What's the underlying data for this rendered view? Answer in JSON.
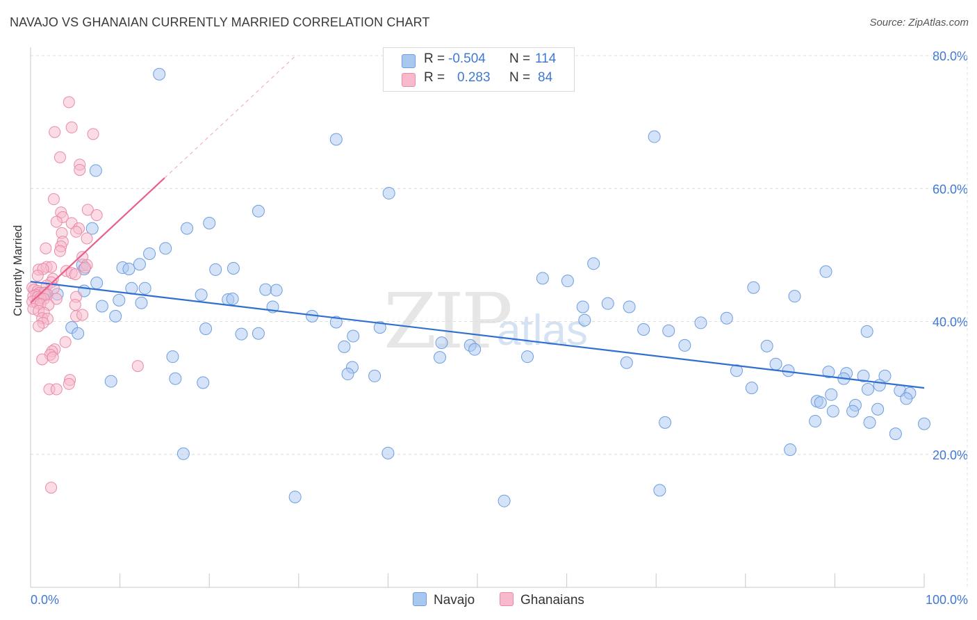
{
  "header": {
    "title": "NAVAJO VS GHANAIAN CURRENTLY MARRIED CORRELATION CHART",
    "source": "Source: ZipAtlas.com"
  },
  "watermark": {
    "zip": "ZIP",
    "atlas": "atlas"
  },
  "legend": {
    "navajo": {
      "r_label": "R =",
      "r_value": "-0.504",
      "n_label": "N =",
      "n_value": "114"
    },
    "ghanaians": {
      "r_label": "R =",
      "r_value": "0.283",
      "n_label": "N =",
      "n_value": "84"
    }
  },
  "bottom_legend": {
    "navajo": "Navajo",
    "ghanaians": "Ghanaians"
  },
  "colors": {
    "navajo_fill": "#a9c8f0",
    "navajo_stroke": "#6d9de0",
    "navajo_line": "#2f6fd0",
    "ghanaian_fill": "#f7b9cb",
    "ghanaian_stroke": "#e98aa8",
    "ghanaian_line": "#e8608a",
    "grid": "#dcdcdc",
    "tick_label": "#3f78d4"
  },
  "chart_data": {
    "type": "scatter",
    "title": "NAVAJO VS GHANAIAN CURRENTLY MARRIED CORRELATION CHART",
    "xlabel": "",
    "ylabel": "Currently Married",
    "xlim": [
      0,
      100
    ],
    "ylim": [
      0,
      80
    ],
    "x_tick_labels": [
      "0.0%",
      "100.0%"
    ],
    "y_ticks": [
      20,
      40,
      60,
      80
    ],
    "y_tick_labels": [
      "20.0%",
      "40.0%",
      "60.0%",
      "80.0%"
    ],
    "grid": true,
    "legend_position": "top-center",
    "series": [
      {
        "name": "Navajo",
        "r": -0.504,
        "n": 114,
        "trend": {
          "x": [
            0,
            100
          ],
          "y": [
            46.0,
            30.0
          ]
        },
        "points": [
          [
            14.4,
            77.2
          ],
          [
            34.2,
            67.4
          ],
          [
            69.8,
            67.8
          ],
          [
            7.3,
            62.7
          ],
          [
            40.1,
            59.3
          ],
          [
            25.5,
            56.6
          ],
          [
            6.9,
            54.0
          ],
          [
            17.5,
            54.0
          ],
          [
            20.0,
            54.8
          ],
          [
            15.1,
            51.0
          ],
          [
            13.3,
            50.2
          ],
          [
            5.8,
            48.5
          ],
          [
            6.0,
            47.9
          ],
          [
            10.3,
            48.1
          ],
          [
            11.0,
            47.9
          ],
          [
            12.2,
            48.6
          ],
          [
            20.7,
            47.8
          ],
          [
            22.7,
            48.0
          ],
          [
            63.0,
            48.7
          ],
          [
            89.0,
            47.5
          ],
          [
            7.4,
            45.8
          ],
          [
            11.3,
            45.0
          ],
          [
            12.8,
            45.0
          ],
          [
            26.3,
            44.8
          ],
          [
            27.5,
            44.7
          ],
          [
            57.3,
            46.5
          ],
          [
            60.1,
            46.1
          ],
          [
            80.9,
            45.1
          ],
          [
            6.0,
            44.6
          ],
          [
            1.7,
            44.3
          ],
          [
            1.6,
            44.0
          ],
          [
            3.0,
            44.1
          ],
          [
            19.1,
            44.0
          ],
          [
            22.1,
            43.3
          ],
          [
            22.6,
            43.4
          ],
          [
            8.0,
            42.3
          ],
          [
            9.9,
            43.2
          ],
          [
            12.4,
            42.8
          ],
          [
            27.1,
            42.2
          ],
          [
            61.8,
            42.2
          ],
          [
            64.6,
            42.7
          ],
          [
            67.0,
            42.2
          ],
          [
            85.5,
            43.8
          ],
          [
            9.5,
            40.8
          ],
          [
            31.5,
            40.8
          ],
          [
            62.0,
            40.2
          ],
          [
            34.2,
            39.9
          ],
          [
            4.6,
            39.1
          ],
          [
            19.6,
            38.9
          ],
          [
            39.1,
            39.1
          ],
          [
            68.6,
            38.8
          ],
          [
            71.4,
            38.6
          ],
          [
            75.0,
            39.8
          ],
          [
            77.9,
            40.5
          ],
          [
            93.6,
            38.5
          ],
          [
            5.3,
            38.2
          ],
          [
            23.6,
            38.1
          ],
          [
            25.5,
            38.2
          ],
          [
            36.1,
            37.8
          ],
          [
            35.1,
            36.2
          ],
          [
            46.0,
            36.8
          ],
          [
            49.2,
            36.4
          ],
          [
            49.7,
            35.8
          ],
          [
            73.2,
            36.4
          ],
          [
            82.4,
            36.3
          ],
          [
            15.9,
            34.7
          ],
          [
            45.8,
            34.6
          ],
          [
            55.6,
            34.7
          ],
          [
            66.7,
            33.8
          ],
          [
            36.0,
            33.1
          ],
          [
            83.4,
            33.6
          ],
          [
            84.8,
            32.6
          ],
          [
            35.5,
            32.1
          ],
          [
            38.5,
            31.8
          ],
          [
            79.0,
            32.6
          ],
          [
            89.3,
            32.4
          ],
          [
            91.3,
            32.2
          ],
          [
            93.2,
            31.8
          ],
          [
            95.6,
            31.8
          ],
          [
            16.2,
            31.4
          ],
          [
            9.0,
            31.0
          ],
          [
            19.3,
            30.8
          ],
          [
            93.7,
            29.8
          ],
          [
            91.0,
            31.4
          ],
          [
            95.0,
            30.4
          ],
          [
            97.3,
            29.6
          ],
          [
            80.7,
            30.0
          ],
          [
            89.6,
            29.0
          ],
          [
            98.4,
            29.2
          ],
          [
            98.0,
            28.4
          ],
          [
            88.0,
            28.0
          ],
          [
            88.4,
            27.8
          ],
          [
            92.3,
            27.4
          ],
          [
            94.8,
            26.8
          ],
          [
            89.8,
            26.5
          ],
          [
            92.0,
            26.5
          ],
          [
            87.8,
            25.0
          ],
          [
            71.0,
            24.8
          ],
          [
            93.9,
            24.8
          ],
          [
            100.0,
            24.6
          ],
          [
            96.8,
            23.1
          ],
          [
            85.0,
            20.7
          ],
          [
            17.1,
            20.1
          ],
          [
            40.0,
            20.2
          ],
          [
            29.6,
            13.6
          ],
          [
            53.0,
            13.0
          ],
          [
            70.4,
            14.6
          ]
        ]
      },
      {
        "name": "Ghanaians",
        "r": 0.283,
        "n": 84,
        "trend": {
          "x": [
            0,
            15
          ],
          "y": [
            42.8,
            61.6
          ]
        },
        "points": [
          [
            4.3,
            73.0
          ],
          [
            4.6,
            69.2
          ],
          [
            2.7,
            68.5
          ],
          [
            7.0,
            68.2
          ],
          [
            3.3,
            64.7
          ],
          [
            5.5,
            63.6
          ],
          [
            5.5,
            62.8
          ],
          [
            2.6,
            58.4
          ],
          [
            6.4,
            56.8
          ],
          [
            3.4,
            56.4
          ],
          [
            7.4,
            56.0
          ],
          [
            3.6,
            55.7
          ],
          [
            2.9,
            55.0
          ],
          [
            4.6,
            54.8
          ],
          [
            5.4,
            54.0
          ],
          [
            5.1,
            53.5
          ],
          [
            3.5,
            53.3
          ],
          [
            6.3,
            52.5
          ],
          [
            3.6,
            52.0
          ],
          [
            3.4,
            51.3
          ],
          [
            3.3,
            50.6
          ],
          [
            1.7,
            51.0
          ],
          [
            5.8,
            49.7
          ],
          [
            6.3,
            48.5
          ],
          [
            0.9,
            47.8
          ],
          [
            1.8,
            48.2
          ],
          [
            2.3,
            48.2
          ],
          [
            6.1,
            48.1
          ],
          [
            1.4,
            47.9
          ],
          [
            4.0,
            47.6
          ],
          [
            4.6,
            47.3
          ],
          [
            0.8,
            46.9
          ],
          [
            2.5,
            46.4
          ],
          [
            5.0,
            47.1
          ],
          [
            2.3,
            45.9
          ],
          [
            0.2,
            45.1
          ],
          [
            1.8,
            45.4
          ],
          [
            2.6,
            45.0
          ],
          [
            0.4,
            44.8
          ],
          [
            0.8,
            44.6
          ],
          [
            1.0,
            44.3
          ],
          [
            1.5,
            44.3
          ],
          [
            0.6,
            44.0
          ],
          [
            1.9,
            44.0
          ],
          [
            0.3,
            43.8
          ],
          [
            0.8,
            43.7
          ],
          [
            1.1,
            43.5
          ],
          [
            1.5,
            43.4
          ],
          [
            2.9,
            43.4
          ],
          [
            5.1,
            43.7
          ],
          [
            0.2,
            43.0
          ],
          [
            0.7,
            42.8
          ],
          [
            1.1,
            42.6
          ],
          [
            2.0,
            42.5
          ],
          [
            5.0,
            42.5
          ],
          [
            0.3,
            41.9
          ],
          [
            0.9,
            41.6
          ],
          [
            1.5,
            41.3
          ],
          [
            5.1,
            40.8
          ],
          [
            5.8,
            41.0
          ],
          [
            1.3,
            40.5
          ],
          [
            1.9,
            40.4
          ],
          [
            1.4,
            39.8
          ],
          [
            0.9,
            39.3
          ],
          [
            3.9,
            36.9
          ],
          [
            2.7,
            35.8
          ],
          [
            2.4,
            35.5
          ],
          [
            2.2,
            35.0
          ],
          [
            2.5,
            34.6
          ],
          [
            1.3,
            34.3
          ],
          [
            12.0,
            33.3
          ],
          [
            4.4,
            31.2
          ],
          [
            4.3,
            30.6
          ],
          [
            2.1,
            29.8
          ],
          [
            2.9,
            29.8
          ],
          [
            2.3,
            15.0
          ]
        ]
      }
    ]
  }
}
